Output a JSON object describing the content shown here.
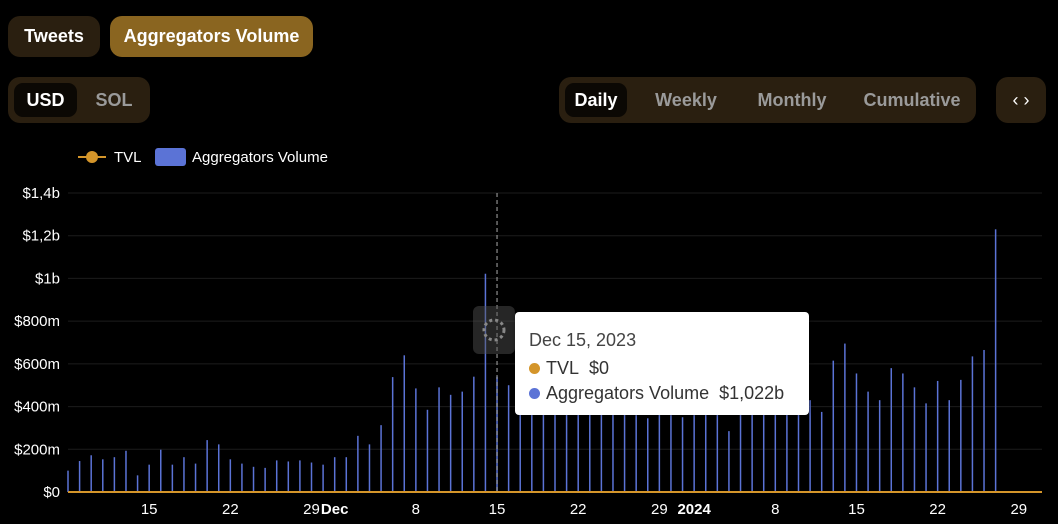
{
  "tabs": [
    {
      "label": "Tweets",
      "active": false
    },
    {
      "label": "Aggregators Volume",
      "active": true
    }
  ],
  "currency": [
    {
      "label": "USD",
      "active": true
    },
    {
      "label": "SOL",
      "active": false
    }
  ],
  "periods": [
    {
      "label": "Daily",
      "active": true
    },
    {
      "label": "Weekly",
      "active": false
    },
    {
      "label": "Monthly",
      "active": false
    },
    {
      "label": "Cumulative",
      "active": false
    }
  ],
  "embed_icon": "code-brackets-icon",
  "tooltip": {
    "date": "Dec 15, 2023",
    "rows": [
      {
        "label": "TVL",
        "value": "$0",
        "color": "#d4952a"
      },
      {
        "label": "Aggregators Volume",
        "value": "$1,022b",
        "color": "#5b73d6"
      }
    ]
  },
  "chart_data": {
    "type": "bar",
    "title": "",
    "legend": {
      "placement": "top-left",
      "entries": [
        {
          "name": "TVL",
          "color": "#d4952a",
          "marker": "line"
        },
        {
          "name": "Aggregators Volume",
          "color": "#5b73d6",
          "marker": "rect"
        }
      ]
    },
    "x_start": "2023-11-08",
    "x_end": "2024-01-31",
    "x_ticks": [
      {
        "date": "2023-11-15",
        "label": "15",
        "bold": false
      },
      {
        "date": "2023-11-22",
        "label": "22",
        "bold": false
      },
      {
        "date": "2023-11-29",
        "label": "29",
        "bold": false
      },
      {
        "date": "2023-12-01",
        "label": "Dec",
        "bold": true
      },
      {
        "date": "2023-12-08",
        "label": "8",
        "bold": false
      },
      {
        "date": "2023-12-15",
        "label": "15",
        "bold": false
      },
      {
        "date": "2023-12-22",
        "label": "22",
        "bold": false
      },
      {
        "date": "2023-12-29",
        "label": "29",
        "bold": false
      },
      {
        "date": "2024-01-01",
        "label": "2024",
        "bold": true
      },
      {
        "date": "2024-01-08",
        "label": "8",
        "bold": false
      },
      {
        "date": "2024-01-15",
        "label": "15",
        "bold": false
      },
      {
        "date": "2024-01-22",
        "label": "22",
        "bold": false
      },
      {
        "date": "2024-01-29",
        "label": "29",
        "bold": false
      }
    ],
    "y_ticks": [
      {
        "value": 0,
        "label": "$0"
      },
      {
        "value": 200000000,
        "label": "$200m"
      },
      {
        "value": 400000000,
        "label": "$400m"
      },
      {
        "value": 600000000,
        "label": "$600m"
      },
      {
        "value": 800000000,
        "label": "$800m"
      },
      {
        "value": 1000000000,
        "label": "$1b"
      },
      {
        "value": 1200000000,
        "label": "$1,2b"
      },
      {
        "value": 1400000000,
        "label": "$1,4b"
      }
    ],
    "ylim": [
      0,
      1400000000
    ],
    "grid": true,
    "series": [
      {
        "name": "Aggregators Volume",
        "color": "#5b73d6",
        "start_date": "2023-11-08",
        "values": [
          100,
          145,
          172,
          153,
          163,
          193,
          78,
          128,
          198,
          128,
          163,
          133,
          243,
          223,
          153,
          133,
          118,
          113,
          148,
          143,
          148,
          138,
          128,
          163,
          163,
          263,
          223,
          313,
          538,
          640,
          485,
          385,
          490,
          455,
          470,
          540,
          1022,
          540,
          500,
          430,
          460,
          430,
          470,
          450,
          440,
          420,
          460,
          400,
          380,
          360,
          345,
          375,
          360,
          350,
          360,
          395,
          370,
          285,
          420,
          470,
          510,
          545,
          450,
          505,
          430,
          375,
          615,
          695,
          555,
          470,
          430,
          580,
          555,
          490,
          415,
          520,
          430,
          525,
          635,
          665,
          1230
        ],
        "value_unit": "$m"
      },
      {
        "name": "TVL",
        "color": "#d4952a",
        "constant_value": 0
      }
    ],
    "hover": {
      "date": "2023-12-15"
    }
  }
}
